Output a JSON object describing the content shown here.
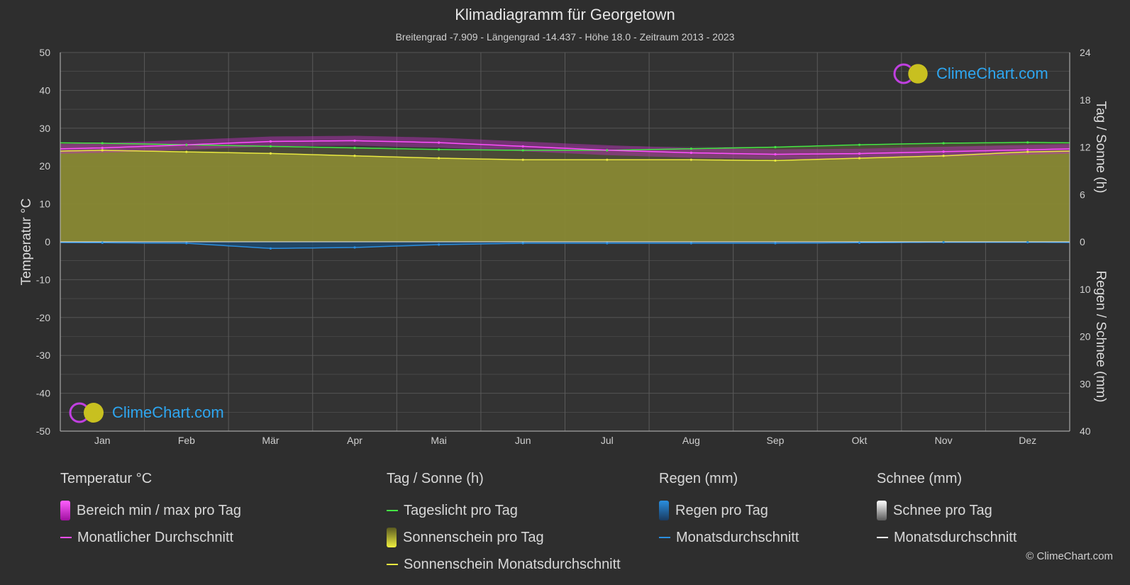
{
  "header": {
    "title": "Klimadiagramm für Georgetown",
    "subtitle": "Breitengrad -7.909 - Längengrad -14.437 - Höhe 18.0 - Zeitraum 2013 - 2023"
  },
  "brand": {
    "logo_text": "ClimeChart.com",
    "copyright": "© ClimeChart.com"
  },
  "chart_data": {
    "type": "area",
    "categories": [
      "Jan",
      "Feb",
      "Mär",
      "Apr",
      "Mai",
      "Jun",
      "Jul",
      "Aug",
      "Sep",
      "Okt",
      "Nov",
      "Dez"
    ],
    "left_axis": {
      "label": "Temperatur °C",
      "range": [
        -50,
        50
      ],
      "ticks": [
        "50",
        "40",
        "30",
        "20",
        "10",
        "0",
        "-10",
        "-20",
        "-30",
        "-40",
        "-50"
      ]
    },
    "right_axis_top": {
      "label": "Tag / Sonne (h)",
      "range": [
        0,
        24
      ],
      "ticks": [
        "24",
        "18",
        "12",
        "6",
        "0"
      ]
    },
    "right_axis_bottom": {
      "label": "Regen / Schnee (mm)",
      "range": [
        0,
        40
      ],
      "ticks": [
        "0",
        "10",
        "20",
        "30",
        "40"
      ]
    },
    "grid": true,
    "series": [
      {
        "name": "Monatlicher Durchschnitt",
        "unit": "°C",
        "color": "#ff4fff",
        "values": [
          24.8,
          25.6,
          26.5,
          26.7,
          26.2,
          25.2,
          24.2,
          23.5,
          23.1,
          23.3,
          23.8,
          24.3
        ]
      },
      {
        "name": "Tageslicht pro Tag",
        "unit": "h",
        "color": "#44e644",
        "values": [
          12.5,
          12.3,
          12.1,
          11.9,
          11.7,
          11.6,
          11.6,
          11.8,
          12.0,
          12.3,
          12.5,
          12.6
        ]
      },
      {
        "name": "Sonnenschein Monatsdurchschnitt",
        "unit": "h",
        "color": "#e8e840",
        "values": [
          11.6,
          11.4,
          11.2,
          10.9,
          10.6,
          10.4,
          10.4,
          10.4,
          10.3,
          10.6,
          10.9,
          11.4
        ]
      },
      {
        "name": "Regen Monatsdurchschnitt",
        "unit": "mm",
        "color": "#2a8fe0",
        "values": [
          0.2,
          0.3,
          1.4,
          1.2,
          0.6,
          0.3,
          0.3,
          0.3,
          0.3,
          0.2,
          0.1,
          0.1
        ]
      },
      {
        "name": "Schnee Monatsdurchschnitt",
        "unit": "mm",
        "color": "#ffffff",
        "values": [
          0,
          0,
          0,
          0,
          0,
          0,
          0,
          0,
          0,
          0,
          0,
          0
        ]
      }
    ]
  },
  "legend": {
    "groups": [
      {
        "title": "Temperatur °C",
        "items": [
          {
            "label": "Bereich min / max pro Tag",
            "kind": "box",
            "color": "#e020e0"
          },
          {
            "label": "Monatlicher Durchschnitt",
            "kind": "line",
            "color": "#ff4fff"
          }
        ]
      },
      {
        "title": "Tag / Sonne (h)",
        "items": [
          {
            "label": "Tageslicht pro Tag",
            "kind": "line",
            "color": "#44e644"
          },
          {
            "label": "Sonnenschein pro Tag",
            "kind": "box",
            "color": "#d8d838"
          },
          {
            "label": "Sonnenschein Monatsdurchschnitt",
            "kind": "line",
            "color": "#e8e840"
          }
        ]
      },
      {
        "title": "Regen (mm)",
        "items": [
          {
            "label": "Regen pro Tag",
            "kind": "box",
            "color": "#2a8fe0"
          },
          {
            "label": "Monatsdurchschnitt",
            "kind": "line",
            "color": "#2a8fe0"
          }
        ]
      },
      {
        "title": "Schnee (mm)",
        "items": [
          {
            "label": "Schnee pro Tag",
            "kind": "box",
            "color": "#d0d0d0"
          },
          {
            "label": "Monatsdurchschnitt",
            "kind": "line",
            "color": "#ffffff"
          }
        ]
      }
    ]
  }
}
